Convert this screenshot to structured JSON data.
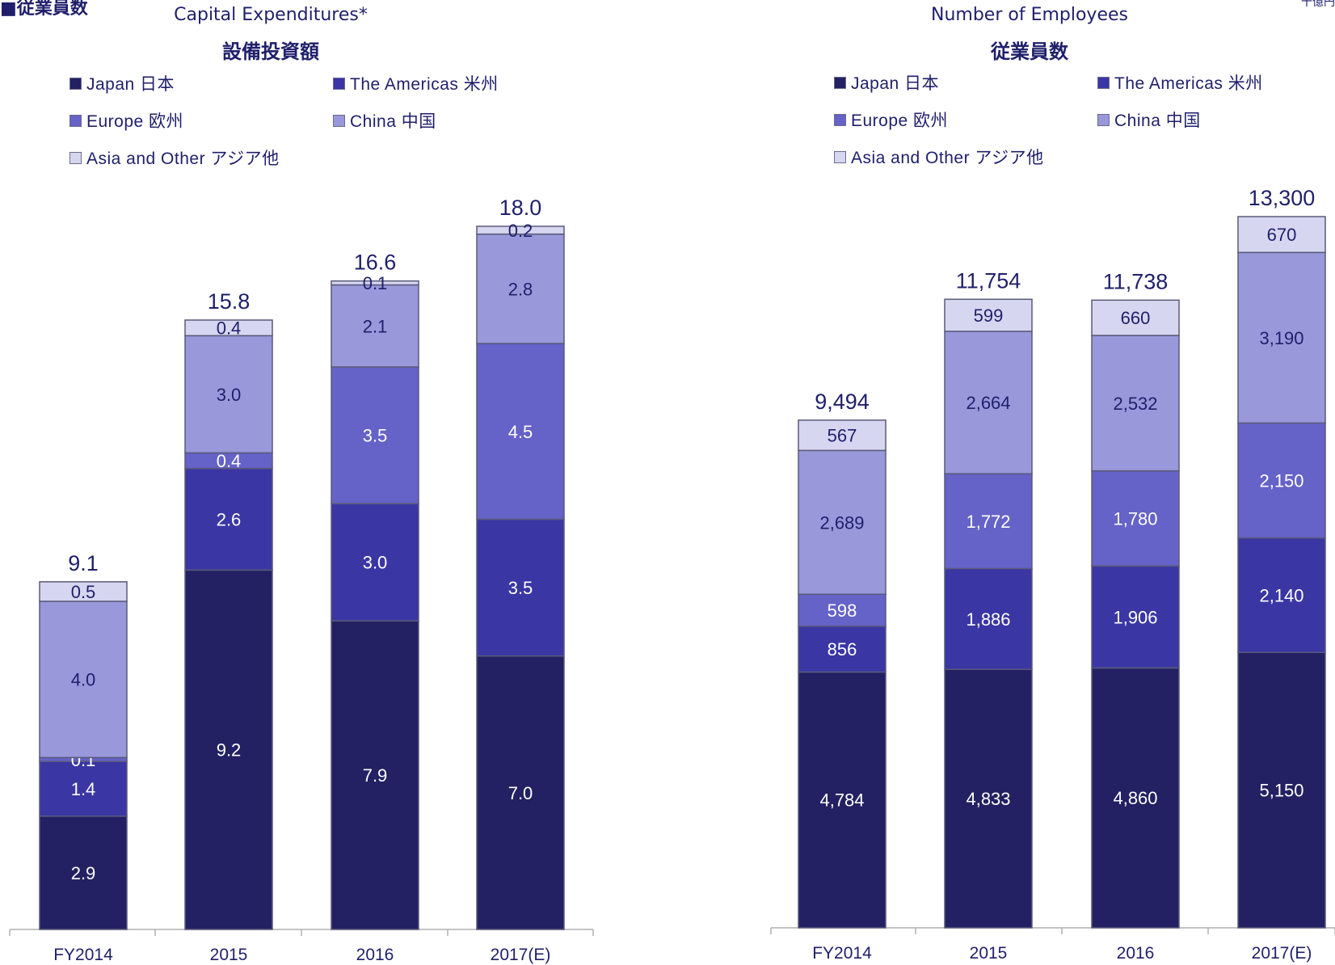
{
  "header": {
    "left_text": "■従業員数",
    "right_text": "十億円"
  },
  "legend_labels": [
    {
      "key": "japan",
      "label": "Japan 日本"
    },
    {
      "key": "americas",
      "label": "The Americas 米州"
    },
    {
      "key": "europe",
      "label": "Europe 欧州"
    },
    {
      "key": "china",
      "label": "China 中国"
    },
    {
      "key": "asia",
      "label": "Asia and Other アジア他"
    }
  ],
  "colors": {
    "japan": "#232163",
    "americas": "#3a36a4",
    "europe": "#6562c8",
    "china": "#9898db",
    "asia": "#d6d6f0",
    "segment_border": "#5a5a7a",
    "axis": "#b0b0b0",
    "text": "#1f1f6b"
  },
  "chart_data": [
    {
      "type": "bar",
      "stacked": true,
      "title": "Capital Expenditures*",
      "subtitle": "設備投資額",
      "categories": [
        "FY2014",
        "2015",
        "2016",
        "2017(E)"
      ],
      "series": [
        {
          "key": "japan",
          "name": "Japan 日本",
          "values": [
            2.9,
            9.2,
            7.9,
            7.0
          ],
          "labels": [
            "2.9",
            "9.2",
            "7.9",
            "7.0"
          ]
        },
        {
          "key": "americas",
          "name": "The Americas 米州",
          "values": [
            1.4,
            2.6,
            3.0,
            3.5
          ],
          "labels": [
            "1.4",
            "2.6",
            "3.0",
            "3.5"
          ]
        },
        {
          "key": "europe",
          "name": "Europe 欧州",
          "values": [
            0.1,
            0.4,
            3.5,
            4.5
          ],
          "labels": [
            "0.1",
            "0.4",
            "3.5",
            "4.5"
          ]
        },
        {
          "key": "china",
          "name": "China 中国",
          "values": [
            4.0,
            3.0,
            2.1,
            2.8
          ],
          "labels": [
            "4.0",
            "3.0",
            "2.1",
            "2.8"
          ]
        },
        {
          "key": "asia",
          "name": "Asia and Other アジア他",
          "values": [
            0.5,
            0.4,
            0.1,
            0.2
          ],
          "labels": [
            "0.5",
            "0.4",
            "0.1",
            "0.2"
          ]
        }
      ],
      "totals": [
        "9.1",
        "15.8",
        "16.6",
        "18.0"
      ],
      "ylim": [
        0,
        18.0
      ],
      "grid": false,
      "legend_position": "top"
    },
    {
      "type": "bar",
      "stacked": true,
      "title": "Number of Employees",
      "subtitle": "従業員数",
      "categories": [
        "FY2014",
        "2015",
        "2016",
        "2017(E)"
      ],
      "series": [
        {
          "key": "japan",
          "name": "Japan 日本",
          "values": [
            4784,
            4833,
            4860,
            5150
          ],
          "labels": [
            "4,784",
            "4,833",
            "4,860",
            "5,150"
          ]
        },
        {
          "key": "americas",
          "name": "The Americas 米州",
          "values": [
            856,
            1886,
            1906,
            2140
          ],
          "labels": [
            "856",
            "1,886",
            "1,906",
            "2,140"
          ]
        },
        {
          "key": "europe",
          "name": "Europe 欧州",
          "values": [
            598,
            1772,
            1780,
            2150
          ],
          "labels": [
            "598",
            "1,772",
            "1,780",
            "2,150"
          ]
        },
        {
          "key": "china",
          "name": "China 中国",
          "values": [
            2689,
            2664,
            2532,
            3190
          ],
          "labels": [
            "2,689",
            "2,664",
            "2,532",
            "3,190"
          ]
        },
        {
          "key": "asia",
          "name": "Asia and Other アジア他",
          "values": [
            567,
            599,
            660,
            670
          ],
          "labels": [
            "567",
            "599",
            "660",
            "670"
          ]
        }
      ],
      "totals": [
        "9,494",
        "11,754",
        "11,738",
        "13,300"
      ],
      "ylim": [
        0,
        13300
      ],
      "grid": false,
      "legend_position": "top"
    }
  ]
}
